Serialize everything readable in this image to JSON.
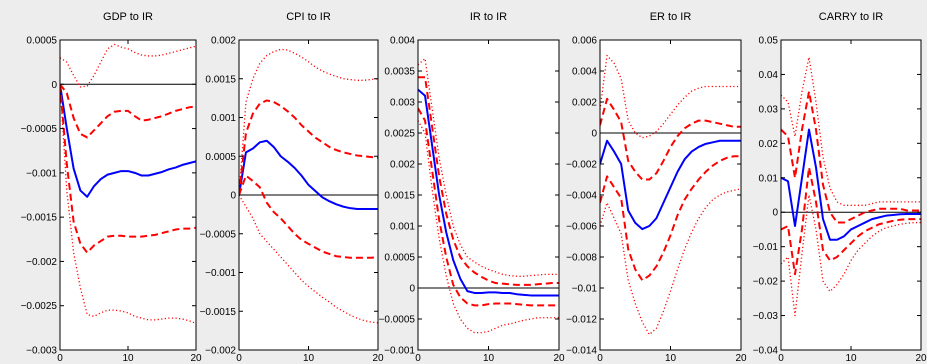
{
  "chart_data": [
    {
      "type": "line",
      "title": "GDP to IR",
      "xlim": [
        0,
        20
      ],
      "ylim": [
        -0.003,
        0.0005
      ],
      "xticks": [
        0,
        10,
        20
      ],
      "xtick_labels": [
        "0",
        "10",
        "20"
      ],
      "yticks": [
        -0.003,
        -0.0025,
        -0.002,
        -0.0015,
        -0.001,
        -0.0005,
        0,
        0.0005
      ],
      "ytick_labels": [
        "−0.003",
        "−0.0025",
        "−0.002",
        "−0.0015",
        "−0.001",
        "−0.0005",
        "0",
        "0.0005"
      ],
      "zero_line": true,
      "x": [
        0,
        1,
        2,
        3,
        4,
        5,
        6,
        7,
        8,
        9,
        10,
        11,
        12,
        13,
        14,
        15,
        16,
        17,
        18,
        19,
        20
      ],
      "series": [
        {
          "style": "solid",
          "color": "#0000ff",
          "values": [
            0.0,
            -0.0005,
            -0.00095,
            -0.0012,
            -0.00127,
            -0.00115,
            -0.00107,
            -0.00102,
            -0.001,
            -0.00098,
            -0.00098,
            -0.001,
            -0.00103,
            -0.00103,
            -0.00101,
            -0.00099,
            -0.00096,
            -0.00094,
            -0.00091,
            -0.00089,
            -0.00087
          ]
        },
        {
          "style": "dashed",
          "color": "#ff0000",
          "values": [
            0.0,
            -0.0009,
            -0.00155,
            -0.0018,
            -0.0019,
            -0.00182,
            -0.00177,
            -0.00172,
            -0.00171,
            -0.00171,
            -0.00172,
            -0.00172,
            -0.00172,
            -0.00171,
            -0.0017,
            -0.00168,
            -0.00166,
            -0.00164,
            -0.00163,
            -0.00163,
            -0.00162
          ]
        },
        {
          "style": "dashed",
          "color": "#ff0000",
          "values": [
            0.0,
            -0.0001,
            -0.00038,
            -0.00056,
            -0.0006,
            -0.00052,
            -0.00044,
            -0.00036,
            -0.00031,
            -0.0003,
            -0.0003,
            -0.00036,
            -0.00041,
            -0.0004,
            -0.00038,
            -0.00036,
            -0.00033,
            -0.0003,
            -0.00028,
            -0.00026,
            -0.00025
          ]
        },
        {
          "style": "dotted",
          "color": "#ff0000",
          "values": [
            0.0,
            -0.0012,
            -0.0019,
            -0.0023,
            -0.0026,
            -0.00262,
            -0.00258,
            -0.00255,
            -0.00255,
            -0.00256,
            -0.00258,
            -0.00262,
            -0.00264,
            -0.00266,
            -0.00266,
            -0.00265,
            -0.00264,
            -0.00264,
            -0.00265,
            -0.00267,
            -0.0027
          ]
        },
        {
          "style": "dotted",
          "color": "#ff0000",
          "values": [
            0.0003,
            0.00025,
            0.0001,
            -3e-05,
            -2e-05,
            0.0001,
            0.00025,
            0.0004,
            0.00045,
            0.00042,
            0.0004,
            0.00036,
            0.00033,
            0.00032,
            0.00032,
            0.00033,
            0.00035,
            0.00037,
            0.00039,
            0.00041,
            0.00043
          ]
        }
      ]
    },
    {
      "type": "line",
      "title": "CPI to IR",
      "xlim": [
        0,
        20
      ],
      "ylim": [
        -0.002,
        0.002
      ],
      "xticks": [
        0,
        10,
        20
      ],
      "xtick_labels": [
        "0",
        "10",
        "20"
      ],
      "yticks": [
        -0.002,
        -0.0015,
        -0.001,
        -0.0005,
        0,
        0.0005,
        0.001,
        0.0015,
        0.002
      ],
      "ytick_labels": [
        "−0.002",
        "−0.0015",
        "−0.001",
        "−0.0005",
        "0",
        "0.0005",
        "0.001",
        "0.0015",
        "0.002"
      ],
      "zero_line": true,
      "x": [
        0,
        1,
        2,
        3,
        4,
        5,
        6,
        7,
        8,
        9,
        10,
        11,
        12,
        13,
        14,
        15,
        16,
        17,
        18,
        19,
        20
      ],
      "series": [
        {
          "style": "solid",
          "color": "#0000ff",
          "values": [
            0.0,
            0.00055,
            0.0006,
            0.00068,
            0.0007,
            0.00062,
            0.0005,
            0.00043,
            0.00035,
            0.00025,
            0.00013,
            5e-05,
            -3e-05,
            -8e-05,
            -0.00012,
            -0.00015,
            -0.00017,
            -0.00018,
            -0.00018,
            -0.00018,
            -0.00018
          ]
        },
        {
          "style": "dashed",
          "color": "#ff0000",
          "values": [
            0.0,
            0.00025,
            0.00018,
            0.0001,
            -0.0001,
            -0.00022,
            -0.0003,
            -0.0004,
            -0.0005,
            -0.00058,
            -0.00063,
            -0.00068,
            -0.00073,
            -0.00076,
            -0.00079,
            -0.0008,
            -0.00081,
            -0.00081,
            -0.00081,
            -0.00081,
            -0.0008
          ]
        },
        {
          "style": "dashed",
          "color": "#ff0000",
          "values": [
            0.0,
            0.0008,
            0.00105,
            0.00118,
            0.00122,
            0.0012,
            0.00115,
            0.00108,
            0.001,
            0.0009,
            0.00082,
            0.00074,
            0.00068,
            0.00062,
            0.00058,
            0.00055,
            0.00053,
            0.00051,
            0.0005,
            0.00049,
            0.00048
          ]
        },
        {
          "style": "dotted",
          "color": "#ff0000",
          "values": [
            0.0,
            -0.00015,
            -0.0003,
            -0.0005,
            -0.0006,
            -0.0007,
            -0.0008,
            -0.0009,
            -0.001,
            -0.0011,
            -0.00118,
            -0.00125,
            -0.00132,
            -0.00138,
            -0.00145,
            -0.0015,
            -0.00155,
            -0.00159,
            -0.00162,
            -0.00164,
            -0.00165
          ]
        },
        {
          "style": "dotted",
          "color": "#ff0000",
          "values": [
            0.0,
            0.0012,
            0.0015,
            0.0017,
            0.0018,
            0.00185,
            0.00188,
            0.00187,
            0.00183,
            0.00178,
            0.00172,
            0.00165,
            0.0016,
            0.00156,
            0.00153,
            0.0015,
            0.00149,
            0.00148,
            0.00148,
            0.00149,
            0.0015
          ]
        }
      ]
    },
    {
      "type": "line",
      "title": "IR to IR",
      "xlim": [
        0,
        20
      ],
      "ylim": [
        -0.001,
        0.004
      ],
      "xticks": [
        0,
        10,
        20
      ],
      "xtick_labels": [
        "0",
        "10",
        "20"
      ],
      "yticks": [
        -0.001,
        -0.0005,
        0,
        0.0005,
        0.001,
        0.0015,
        0.002,
        0.0025,
        0.003,
        0.0035,
        0.004
      ],
      "ytick_labels": [
        "−0.001",
        "−0.0005",
        "0",
        "0.0005",
        "0.001",
        "0.0015",
        "0.002",
        "0.0025",
        "0.003",
        "0.0035",
        "0.004"
      ],
      "zero_line": true,
      "x": [
        0,
        1,
        2,
        3,
        4,
        5,
        6,
        7,
        8,
        9,
        10,
        11,
        12,
        13,
        14,
        15,
        16,
        17,
        18,
        19,
        20
      ],
      "series": [
        {
          "style": "solid",
          "color": "#0000ff",
          "values": [
            0.0032,
            0.0031,
            0.0023,
            0.0015,
            0.0009,
            0.00045,
            0.00015,
            -5e-05,
            -8e-05,
            -8e-05,
            -7e-05,
            -7e-05,
            -8e-05,
            -8e-05,
            -0.0001,
            -0.00011,
            -0.00012,
            -0.00012,
            -0.00012,
            -0.00012,
            -0.00012
          ]
        },
        {
          "style": "dashed",
          "color": "#ff0000",
          "values": [
            0.0034,
            0.0034,
            0.0026,
            0.0018,
            0.0012,
            0.00078,
            0.0005,
            0.00035,
            0.00025,
            0.00018,
            0.00012,
            8e-05,
            7e-05,
            6e-05,
            5e-05,
            5e-05,
            5e-05,
            6e-05,
            7e-05,
            8e-05,
            8e-05
          ]
        },
        {
          "style": "dashed",
          "color": "#ff0000",
          "values": [
            0.0029,
            0.0027,
            0.0019,
            0.0011,
            0.0005,
            5e-05,
            -0.00015,
            -0.00025,
            -0.00028,
            -0.00028,
            -0.00026,
            -0.00025,
            -0.00025,
            -0.00025,
            -0.00026,
            -0.00027,
            -0.00028,
            -0.00028,
            -0.00028,
            -0.00028,
            -0.00028
          ]
        },
        {
          "style": "dotted",
          "color": "#ff0000",
          "values": [
            0.0036,
            0.0037,
            0.0029,
            0.0021,
            0.0015,
            0.001,
            0.0007,
            0.0005,
            0.00042,
            0.00035,
            0.0003,
            0.00026,
            0.00022,
            0.0002,
            0.00019,
            0.00019,
            0.0002,
            0.00021,
            0.00022,
            0.00022,
            0.00022
          ]
        },
        {
          "style": "dotted",
          "color": "#ff0000",
          "values": [
            0.0027,
            0.0025,
            0.0016,
            0.0008,
            0.0002,
            -0.00025,
            -0.0005,
            -0.00065,
            -0.00072,
            -0.00072,
            -0.0007,
            -0.00065,
            -0.0006,
            -0.00058,
            -0.00055,
            -0.00052,
            -0.0005,
            -0.00048,
            -0.00048,
            -0.00048,
            -0.00048
          ]
        }
      ]
    },
    {
      "type": "line",
      "title": "ER to IR",
      "xlim": [
        0,
        20
      ],
      "ylim": [
        -0.014,
        0.006
      ],
      "xticks": [
        0,
        10,
        20
      ],
      "xtick_labels": [
        "0",
        "10",
        "20"
      ],
      "yticks": [
        -0.014,
        -0.012,
        -0.01,
        -0.008,
        -0.006,
        -0.004,
        -0.002,
        0,
        0.002,
        0.004,
        0.006
      ],
      "ytick_labels": [
        "−0.014",
        "−0.012",
        "−0.01",
        "−0.008",
        "−0.006",
        "−0.004",
        "−0.002",
        "0",
        "0.002",
        "0.004",
        "0.006"
      ],
      "zero_line": true,
      "x": [
        0,
        1,
        2,
        3,
        4,
        5,
        6,
        7,
        8,
        9,
        10,
        11,
        12,
        13,
        14,
        15,
        16,
        17,
        18,
        19,
        20
      ],
      "series": [
        {
          "style": "solid",
          "color": "#0000ff",
          "values": [
            -0.002,
            -0.0005,
            -0.0012,
            -0.002,
            -0.005,
            -0.0058,
            -0.0062,
            -0.006,
            -0.0055,
            -0.0045,
            -0.0035,
            -0.0025,
            -0.0017,
            -0.0012,
            -0.0009,
            -0.0007,
            -0.0006,
            -0.0005,
            -0.0005,
            -0.0005,
            -0.0005
          ]
        },
        {
          "style": "dashed",
          "color": "#ff0000",
          "values": [
            -0.0045,
            -0.0028,
            -0.0035,
            -0.0042,
            -0.0075,
            -0.0088,
            -0.0095,
            -0.0092,
            -0.0086,
            -0.0077,
            -0.0066,
            -0.0053,
            -0.0043,
            -0.0036,
            -0.003,
            -0.0025,
            -0.0021,
            -0.0018,
            -0.0016,
            -0.0015,
            -0.0015
          ]
        },
        {
          "style": "dashed",
          "color": "#ff0000",
          "values": [
            0.0005,
            0.0022,
            0.0015,
            0.0007,
            -0.0018,
            -0.0025,
            -0.003,
            -0.003,
            -0.0026,
            -0.0018,
            -0.0009,
            -0.0002,
            0.0003,
            0.0006,
            0.0008,
            0.0008,
            0.0007,
            0.0006,
            0.0005,
            0.0004,
            0.0004
          ]
        },
        {
          "style": "dotted",
          "color": "#ff0000",
          "values": [
            -0.006,
            -0.0045,
            -0.0055,
            -0.0065,
            -0.0095,
            -0.011,
            -0.0122,
            -0.013,
            -0.0126,
            -0.0115,
            -0.0102,
            -0.0088,
            -0.0075,
            -0.0064,
            -0.0055,
            -0.0048,
            -0.0043,
            -0.004,
            -0.0038,
            -0.0037,
            -0.0036
          ]
        },
        {
          "style": "dotted",
          "color": "#ff0000",
          "values": [
            0.0015,
            0.005,
            0.0045,
            0.0035,
            0.0008,
            0.0,
            -0.0003,
            -0.0002,
            0.0001,
            0.0006,
            0.0012,
            0.0018,
            0.0023,
            0.0027,
            0.0029,
            0.003,
            0.003,
            0.003,
            0.003,
            0.003,
            0.003
          ]
        }
      ]
    },
    {
      "type": "line",
      "title": "CARRY to IR",
      "xlim": [
        0,
        20
      ],
      "ylim": [
        -0.04,
        0.05
      ],
      "xticks": [
        0,
        10,
        20
      ],
      "xtick_labels": [
        "0",
        "10",
        "20"
      ],
      "yticks": [
        -0.04,
        -0.03,
        -0.02,
        -0.01,
        0,
        0.01,
        0.02,
        0.03,
        0.04,
        0.05
      ],
      "ytick_labels": [
        "−0.04",
        "−0.03",
        "−0.02",
        "−0.01",
        "0",
        "0.01",
        "0.02",
        "0.03",
        "0.04",
        "0.05"
      ],
      "zero_line": true,
      "x": [
        0,
        1,
        2,
        3,
        4,
        5,
        6,
        7,
        8,
        9,
        10,
        11,
        12,
        13,
        14,
        15,
        16,
        17,
        18,
        19,
        20
      ],
      "series": [
        {
          "style": "solid",
          "color": "#0000ff",
          "values": [
            0.01,
            0.009,
            -0.004,
            0.01,
            0.024,
            0.013,
            -0.002,
            -0.008,
            -0.008,
            -0.007,
            -0.005,
            -0.004,
            -0.003,
            -0.002,
            -0.0015,
            -0.001,
            -0.0008,
            -0.0006,
            -0.0005,
            -0.0005,
            -0.0005
          ]
        },
        {
          "style": "dashed",
          "color": "#ff0000",
          "values": [
            -0.005,
            -0.004,
            -0.018,
            -0.005,
            0.013,
            0.003,
            -0.011,
            -0.014,
            -0.013,
            -0.011,
            -0.009,
            -0.007,
            -0.0055,
            -0.0045,
            -0.0035,
            -0.003,
            -0.0025,
            -0.0022,
            -0.002,
            -0.002,
            -0.002
          ]
        },
        {
          "style": "dashed",
          "color": "#ff0000",
          "values": [
            0.024,
            0.022,
            0.01,
            0.024,
            0.035,
            0.024,
            0.008,
            0.0,
            -0.003,
            -0.003,
            -0.002,
            -0.001,
            0.0,
            0.0005,
            0.001,
            0.001,
            0.001,
            0.001,
            0.0005,
            0.0005,
            0.0005
          ]
        },
        {
          "style": "dotted",
          "color": "#ff0000",
          "values": [
            -0.015,
            -0.013,
            -0.03,
            -0.012,
            0.005,
            -0.005,
            -0.02,
            -0.023,
            -0.021,
            -0.018,
            -0.014,
            -0.011,
            -0.009,
            -0.007,
            -0.0055,
            -0.0045,
            -0.004,
            -0.0035,
            -0.0032,
            -0.003,
            -0.003
          ]
        },
        {
          "style": "dotted",
          "color": "#ff0000",
          "values": [
            0.034,
            0.032,
            0.022,
            0.035,
            0.045,
            0.032,
            0.016,
            0.007,
            0.003,
            0.002,
            0.002,
            0.002,
            0.002,
            0.0025,
            0.003,
            0.003,
            0.003,
            0.003,
            0.003,
            0.003,
            0.003
          ]
        }
      ]
    }
  ]
}
